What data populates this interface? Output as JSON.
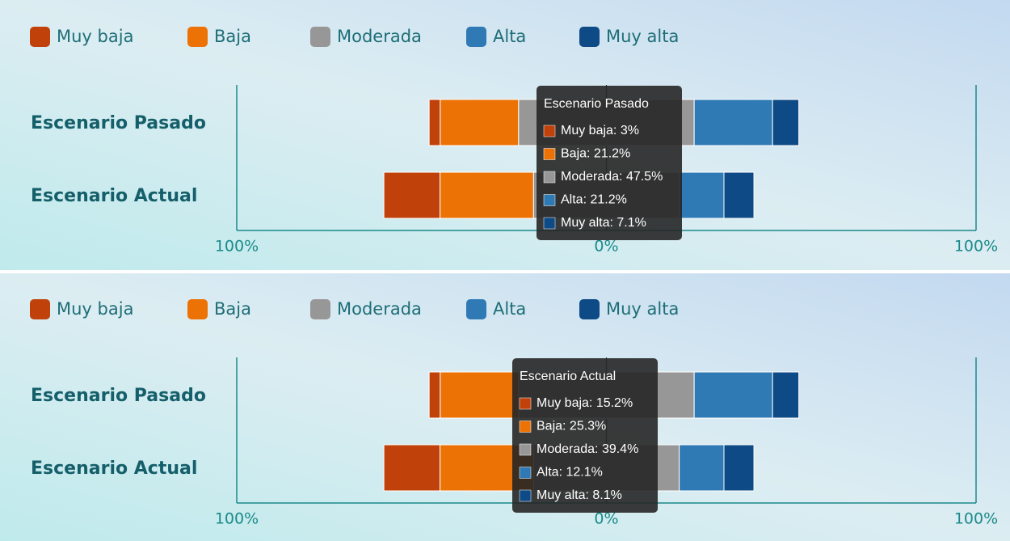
{
  "chart_data": [
    {
      "type": "diverging-bar",
      "categories": [
        "Escenario Pasado",
        "Escenario Actual"
      ],
      "series": [
        {
          "name": "Muy baja",
          "color": "#c0410a",
          "values": [
            3,
            15.2
          ]
        },
        {
          "name": "Baja",
          "color": "#ec7205",
          "values": [
            21.2,
            25.3
          ]
        },
        {
          "name": "Moderada",
          "color": "#979797",
          "values": [
            47.5,
            39.4
          ]
        },
        {
          "name": "Alta",
          "color": "#2f7ab4",
          "values": [
            21.2,
            12.1
          ]
        },
        {
          "name": "Muy alta",
          "color": "#0e4a86",
          "values": [
            7.1,
            8.1
          ]
        }
      ],
      "xlim": [
        -100,
        100
      ],
      "xticks": [
        {
          "value": -100,
          "label": "100%"
        },
        {
          "value": 0,
          "label": "0%"
        },
        {
          "value": 100,
          "label": "100%"
        }
      ],
      "tooltip": {
        "title": "Escenario Pasado",
        "items": [
          "Muy baja: 3%",
          "Baja: 21.2%",
          "Moderada: 47.5%",
          "Alta: 21.2%",
          "Muy alta: 7.1%"
        ]
      }
    },
    {
      "type": "diverging-bar",
      "categories": [
        "Escenario Pasado",
        "Escenario Actual"
      ],
      "series": [
        {
          "name": "Muy baja",
          "color": "#c0410a",
          "values": [
            3,
            15.2
          ]
        },
        {
          "name": "Baja",
          "color": "#ec7205",
          "values": [
            21.2,
            25.3
          ]
        },
        {
          "name": "Moderada",
          "color": "#979797",
          "values": [
            47.5,
            39.4
          ]
        },
        {
          "name": "Alta",
          "color": "#2f7ab4",
          "values": [
            21.2,
            12.1
          ]
        },
        {
          "name": "Muy alta",
          "color": "#0e4a86",
          "values": [
            7.1,
            8.1
          ]
        }
      ],
      "xlim": [
        -100,
        100
      ],
      "xticks": [
        {
          "value": -100,
          "label": "100%"
        },
        {
          "value": 0,
          "label": "0%"
        },
        {
          "value": 100,
          "label": "100%"
        }
      ],
      "tooltip": {
        "title": "Escenario Actual",
        "items": [
          "Muy baja: 15.2%",
          "Baja: 25.3%",
          "Moderada: 39.4%",
          "Alta: 12.1%",
          "Muy alta: 8.1%"
        ]
      }
    }
  ]
}
